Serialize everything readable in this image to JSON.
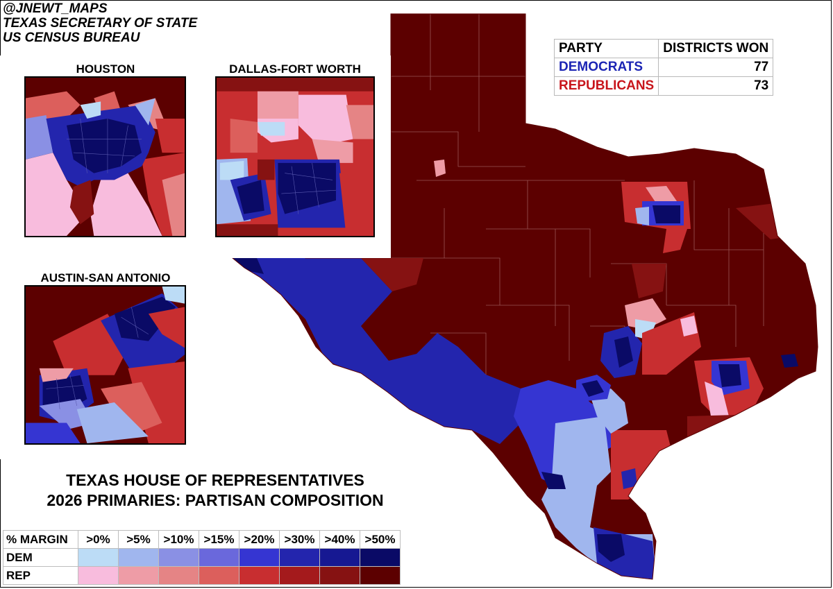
{
  "credits": [
    "@JNEWT_MAPS",
    "TEXAS SECRETARY OF STATE",
    "US CENSUS BUREAU"
  ],
  "insets": {
    "houston": {
      "title": "HOUSTON"
    },
    "dfw": {
      "title": "DALLAS-FORT WORTH"
    },
    "austin_sa": {
      "title": "AUSTIN-SAN ANTONIO"
    }
  },
  "summary_table": {
    "headers": [
      "PARTY",
      "DISTRICTS WON"
    ],
    "rows": [
      {
        "party": "DEMOCRATS",
        "won": "77",
        "color": "#1c25b4"
      },
      {
        "party": "REPUBLICANS",
        "won": "73",
        "color": "#c8151b"
      }
    ]
  },
  "title": {
    "line1": "TEXAS HOUSE OF REPRESENTATIVES",
    "line2": "2026 PRIMARIES: PARTISAN COMPOSITION"
  },
  "legend": {
    "corner": "% MARGIN",
    "bins": [
      ">0%",
      ">5%",
      ">10%",
      ">15%",
      ">20%",
      ">30%",
      ">40%",
      ">50%"
    ],
    "dem_label": "DEM",
    "rep_label": "REP",
    "dem_colors": [
      "#bcdcf6",
      "#a0b6ee",
      "#8a90e4",
      "#6a68dc",
      "#3535d2",
      "#2325ad",
      "#161892",
      "#0a0a66"
    ],
    "rep_colors": [
      "#f8bcdd",
      "#ee9ca6",
      "#e58485",
      "#dc5f5c",
      "#c82e30",
      "#a41a1c",
      "#861212",
      "#5c0000"
    ]
  }
}
